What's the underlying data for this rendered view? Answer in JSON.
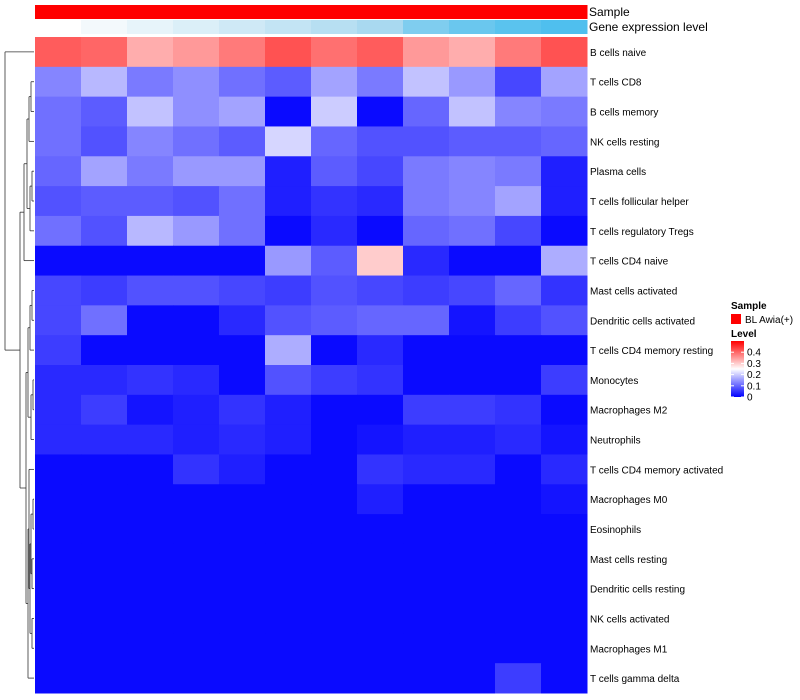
{
  "chart_data": {
    "type": "heatmap",
    "annotation_tracks": [
      "Sample",
      "Gene expression level"
    ],
    "sample_colors": [
      "#ff0000",
      "#ff0000",
      "#ff0000",
      "#ff0000",
      "#ff0000",
      "#ff0000",
      "#ff0000",
      "#ff0000",
      "#ff0000",
      "#ff0000",
      "#ff0000",
      "#ff0000"
    ],
    "expression_colors": [
      "#ffffff",
      "#f3f9fc",
      "#e7f4fa",
      "#dbeff8",
      "#cfe9f6",
      "#c3e4f4",
      "#b7dff2",
      "#a9d9f0",
      "#7fcdef",
      "#6ac7ee",
      "#5ac3ee",
      "#4fbfee"
    ],
    "rows": [
      "B cells naive",
      "T cells CD8",
      "B cells memory",
      "NK cells resting",
      "Plasma cells",
      "T cells follicular helper",
      "T cells regulatory  Tregs",
      "T cells CD4 naive",
      "Mast cells activated",
      "Dendritic cells activated",
      "T cells CD4 memory resting",
      "Monocytes",
      "Macrophages M2",
      "Neutrophils",
      "T cells CD4 memory activated",
      "Macrophages M0",
      "Eosinophils",
      "Mast cells resting",
      "Dendritic cells resting",
      "NK cells activated",
      "Macrophages M1",
      "T cells gamma delta"
    ],
    "values": [
      [
        0.41,
        0.4,
        0.33,
        0.35,
        0.38,
        0.42,
        0.39,
        0.41,
        0.35,
        0.33,
        0.38,
        0.42
      ],
      [
        0.13,
        0.18,
        0.12,
        0.14,
        0.11,
        0.09,
        0.16,
        0.12,
        0.19,
        0.15,
        0.07,
        0.16
      ],
      [
        0.11,
        0.09,
        0.19,
        0.14,
        0.16,
        0.01,
        0.2,
        0.01,
        0.1,
        0.19,
        0.13,
        0.12
      ],
      [
        0.11,
        0.08,
        0.13,
        0.11,
        0.09,
        0.21,
        0.1,
        0.08,
        0.08,
        0.09,
        0.09,
        0.1
      ],
      [
        0.1,
        0.16,
        0.12,
        0.15,
        0.15,
        0.03,
        0.09,
        0.07,
        0.12,
        0.13,
        0.12,
        0.03
      ],
      [
        0.08,
        0.09,
        0.09,
        0.08,
        0.11,
        0.03,
        0.05,
        0.04,
        0.12,
        0.13,
        0.16,
        0.03
      ],
      [
        0.11,
        0.08,
        0.18,
        0.15,
        0.11,
        0.01,
        0.04,
        0.01,
        0.1,
        0.11,
        0.07,
        0.01
      ],
      [
        0.01,
        0.01,
        0.01,
        0.01,
        0.01,
        0.15,
        0.09,
        0.3,
        0.04,
        0.01,
        0.01,
        0.17
      ],
      [
        0.07,
        0.06,
        0.08,
        0.08,
        0.07,
        0.06,
        0.08,
        0.07,
        0.06,
        0.07,
        0.1,
        0.05
      ],
      [
        0.07,
        0.11,
        0.01,
        0.01,
        0.04,
        0.08,
        0.09,
        0.1,
        0.1,
        0.02,
        0.06,
        0.08
      ],
      [
        0.06,
        0.01,
        0.01,
        0.01,
        0.01,
        0.17,
        0.01,
        0.04,
        0.01,
        0.01,
        0.01,
        0.01
      ],
      [
        0.04,
        0.04,
        0.05,
        0.04,
        0.01,
        0.08,
        0.06,
        0.05,
        0.01,
        0.01,
        0.01,
        0.06
      ],
      [
        0.04,
        0.06,
        0.02,
        0.03,
        0.05,
        0.03,
        0.01,
        0.01,
        0.06,
        0.06,
        0.05,
        0.01
      ],
      [
        0.04,
        0.04,
        0.04,
        0.03,
        0.04,
        0.03,
        0.01,
        0.02,
        0.03,
        0.03,
        0.04,
        0.02
      ],
      [
        0.01,
        0.01,
        0.01,
        0.05,
        0.03,
        0.01,
        0.01,
        0.05,
        0.04,
        0.04,
        0.01,
        0.04
      ],
      [
        0.01,
        0.01,
        0.01,
        0.01,
        0.01,
        0.01,
        0.01,
        0.03,
        0.01,
        0.01,
        0.01,
        0.02
      ],
      [
        0.01,
        0.01,
        0.01,
        0.01,
        0.01,
        0.01,
        0.01,
        0.01,
        0.01,
        0.01,
        0.01,
        0.01
      ],
      [
        0.01,
        0.01,
        0.01,
        0.01,
        0.01,
        0.01,
        0.01,
        0.01,
        0.01,
        0.01,
        0.01,
        0.01
      ],
      [
        0.01,
        0.01,
        0.01,
        0.01,
        0.01,
        0.01,
        0.01,
        0.01,
        0.01,
        0.01,
        0.01,
        0.01
      ],
      [
        0.01,
        0.01,
        0.01,
        0.01,
        0.01,
        0.01,
        0.01,
        0.01,
        0.01,
        0.01,
        0.01,
        0.01
      ],
      [
        0.01,
        0.01,
        0.01,
        0.01,
        0.01,
        0.01,
        0.01,
        0.01,
        0.01,
        0.01,
        0.01,
        0.01
      ],
      [
        0.01,
        0.01,
        0.01,
        0.01,
        0.01,
        0.01,
        0.01,
        0.01,
        0.01,
        0.01,
        0.06,
        0.01
      ]
    ],
    "color_scale": {
      "low": "#0000ff",
      "mid": "#ffffff",
      "high": "#ff0000",
      "min": 0,
      "max": 0.5
    },
    "legend": {
      "sample_title": "Sample",
      "sample_entry": "BL Awia(+)",
      "sample_color": "#ff0000",
      "level_title": "Level",
      "level_ticks": [
        0.4,
        0.3,
        0.2,
        0.1,
        0
      ],
      "level_tick_labels": [
        "0.4",
        "0.3",
        "0.2",
        "0.1",
        "0"
      ],
      "placement": "right"
    },
    "row_dendrogram": true
  }
}
